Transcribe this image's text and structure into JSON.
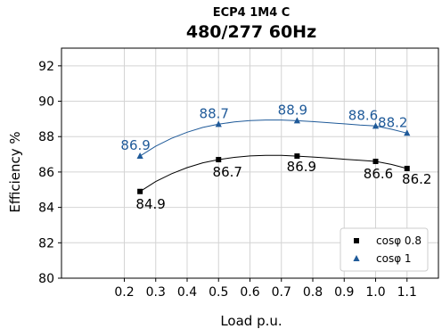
{
  "chart_data": {
    "type": "line",
    "title": "ECP4 1M4 C",
    "subtitle": "480/277 60Hz",
    "xlabel": "Load p.u.",
    "ylabel": "Efficiency %",
    "xlim": [
      0.0,
      1.2
    ],
    "ylim": [
      80,
      93
    ],
    "xticks": [
      "0.2",
      "0.3",
      "0.4",
      "0.5",
      "0.6",
      "0.7",
      "0.8",
      "0.9",
      "1.0",
      "1.1"
    ],
    "yticks": [
      "80",
      "82",
      "84",
      "86",
      "88",
      "90",
      "92"
    ],
    "grid": true,
    "legend_position": "bottom-right",
    "series": [
      {
        "name": "cosφ 0.8",
        "marker": "square",
        "color": "#000000",
        "x": [
          0.25,
          0.5,
          0.75,
          1.0,
          1.1
        ],
        "y": [
          84.9,
          86.7,
          86.9,
          86.6,
          86.2
        ],
        "labels": [
          "84.9",
          "86.7",
          "86.9",
          "86.6",
          "86.2"
        ],
        "curve_x": [
          0.25,
          0.3,
          0.35,
          0.4,
          0.45,
          0.5,
          0.55,
          0.6,
          0.65,
          0.7,
          0.75,
          0.8,
          0.85,
          0.9,
          0.95,
          1.0,
          1.05,
          1.1
        ],
        "curve_y": [
          84.9,
          85.46,
          85.9,
          86.25,
          86.52,
          86.7,
          86.83,
          86.91,
          86.94,
          86.94,
          86.9,
          86.85,
          86.79,
          86.72,
          86.66,
          86.6,
          86.43,
          86.2
        ]
      },
      {
        "name": "cosφ 1",
        "marker": "triangle",
        "color": "#1f5a99",
        "x": [
          0.25,
          0.5,
          0.75,
          1.0,
          1.1
        ],
        "y": [
          86.9,
          88.7,
          88.9,
          88.6,
          88.2
        ],
        "labels": [
          "86.9",
          "88.7",
          "88.9",
          "88.6",
          "88.2"
        ],
        "curve_x": [
          0.25,
          0.3,
          0.35,
          0.4,
          0.45,
          0.5,
          0.55,
          0.6,
          0.65,
          0.7,
          0.75,
          0.8,
          0.85,
          0.9,
          0.95,
          1.0,
          1.05,
          1.1
        ],
        "curve_y": [
          86.9,
          87.46,
          87.9,
          88.25,
          88.52,
          88.7,
          88.83,
          88.91,
          88.94,
          88.94,
          88.9,
          88.85,
          88.79,
          88.72,
          88.65,
          88.6,
          88.42,
          88.2
        ]
      }
    ]
  }
}
